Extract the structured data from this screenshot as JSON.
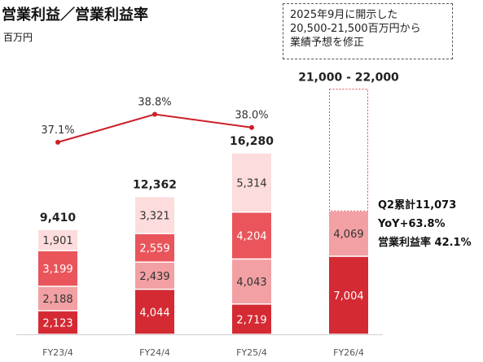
{
  "title": "営業利益／営業利益率",
  "unit_label": "百万円",
  "notice": {
    "lines": [
      "2025年9月に開示した",
      "20,500-21,500百万円から",
      "業績予想を修正"
    ]
  },
  "q2_note": {
    "cumulative": "Q2累計11,073",
    "yoy": "YoY+63.8%",
    "margin": "営業利益率 42.1%"
  },
  "colors": {
    "q1": "#d42a33",
    "q2": "#f2a0a3",
    "q3": "#e9555b",
    "q4": "#fcdcdc",
    "forecast_border": "#e24b50",
    "rate_line": "#cc1f28",
    "segment_text_dark": "#ffffff",
    "segment_text_light": "#333333"
  },
  "chart_data": {
    "type": "bar",
    "stacked": true,
    "categories": [
      "FY23/4",
      "FY24/4",
      "FY25/4",
      "FY26/4"
    ],
    "series": [
      {
        "values": [
          2123,
          4044,
          2719,
          7004
        ]
      },
      {
        "values": [
          2188,
          2439,
          4043,
          4069
        ]
      },
      {
        "values": [
          3199,
          2559,
          4204,
          null
        ]
      },
      {
        "values": [
          1901,
          3321,
          5314,
          null
        ]
      }
    ],
    "segment_labels": [
      [
        "2,123",
        "2,188",
        "3,199",
        "1,901"
      ],
      [
        "4,044",
        "2,439",
        "2,559",
        "3,321"
      ],
      [
        "2,719",
        "4,043",
        "4,204",
        "5,314"
      ],
      [
        "7,004",
        "4,069",
        "",
        ""
      ]
    ],
    "totals": [
      9410,
      12362,
      16280,
      null
    ],
    "total_labels": [
      "9,410",
      "12,362",
      "16,280",
      "21,000 - 22,000"
    ],
    "forecast_range": [
      21000,
      22000
    ],
    "operating_margin": [
      37.1,
      38.8,
      38.0,
      null
    ],
    "operating_margin_labels": [
      "37.1%",
      "38.8%",
      "38.0%",
      ""
    ],
    "ylim": [
      0,
      22000
    ]
  }
}
